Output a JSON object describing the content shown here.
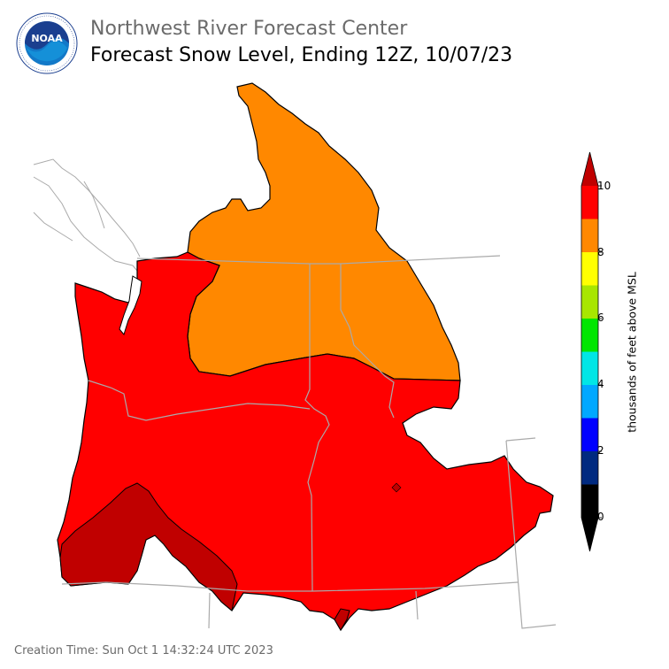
{
  "header": {
    "title": "Northwest River Forecast Center",
    "subtitle": "Forecast Snow Level, Ending 12Z, 10/07/23"
  },
  "logo": {
    "text": "NOAA",
    "ring_text": "NATIONAL OCEANIC AND ATMOSPHERIC ADMINISTRATION · U.S. DEPARTMENT OF COMMERCE"
  },
  "legend": {
    "axis_label": "thousands of feet above MSL",
    "ticks": [
      "0",
      "2",
      "4",
      "6",
      "8",
      "10"
    ],
    "bins": [
      {
        "from": 0,
        "to": 1,
        "color": "#000000"
      },
      {
        "from": 1,
        "to": 2,
        "color": "#002a80"
      },
      {
        "from": 2,
        "to": 3,
        "color": "#0000ff"
      },
      {
        "from": 3,
        "to": 4,
        "color": "#00a8ff"
      },
      {
        "from": 4,
        "to": 5,
        "color": "#00e6e6"
      },
      {
        "from": 5,
        "to": 6,
        "color": "#00e600"
      },
      {
        "from": 6,
        "to": 7,
        "color": "#a8e600"
      },
      {
        "from": 7,
        "to": 8,
        "color": "#ffff00"
      },
      {
        "from": 8,
        "to": 9,
        "color": "#ff8800"
      },
      {
        "from": 9,
        "to": 10,
        "color": "#ff0000"
      },
      {
        "from": 10,
        "to": null,
        "color": "#c00000"
      }
    ]
  },
  "map": {
    "colors": {
      "orange": "#ff8800",
      "red": "#ff0000",
      "dark_red": "#c00000",
      "boundary": "#000000",
      "state_lines": "#aaaaaa"
    }
  },
  "footer": {
    "creation_time": "Creation Time: Sun Oct 1 14:32:24 UTC 2023"
  }
}
